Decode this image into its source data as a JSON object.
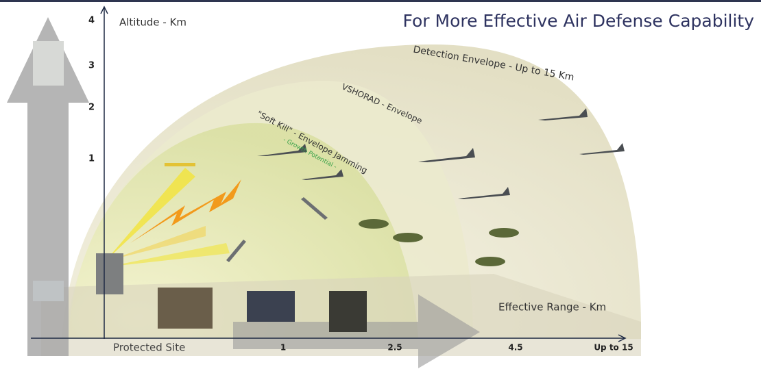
{
  "header": {
    "title": "For More Effective Air Defense Capability"
  },
  "axes": {
    "y": {
      "label": "Altitude - Km",
      "ticks": [
        "4",
        "3",
        "2",
        "1"
      ]
    },
    "x": {
      "label": "Effective Range - Km",
      "ticks": [
        "Protected Site",
        "1",
        "2.5",
        "4.5",
        "Up to 15"
      ]
    }
  },
  "envelopes": [
    {
      "label": "Detection Envelope - Up to 15 Km"
    },
    {
      "label": "VSHORAD - Envelope"
    },
    {
      "label": "\"Soft Kill\" - Envelope Jamming",
      "note": "- Growth Potential -"
    }
  ]
}
